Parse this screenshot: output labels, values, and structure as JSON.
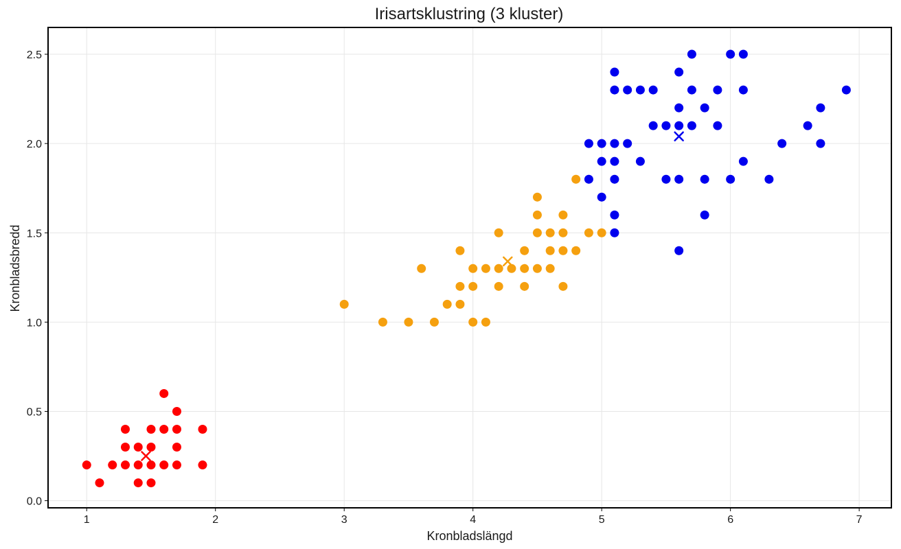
{
  "chart_data": {
    "type": "scatter",
    "title": "Irisartsklustring (3 kluster)",
    "xlabel": "Kronbladslängd",
    "ylabel": "Kronbladsbredd",
    "xlim": [
      0.7,
      7.25
    ],
    "ylim": [
      -0.04,
      2.65
    ],
    "xticks": [
      1,
      2,
      3,
      4,
      5,
      6,
      7
    ],
    "xtick_labels": [
      "1",
      "2",
      "3",
      "4",
      "5",
      "6",
      "7"
    ],
    "yticks": [
      0.0,
      0.5,
      1.0,
      1.5,
      2.0,
      2.5
    ],
    "ytick_labels": [
      "0.0",
      "0.5",
      "1.0",
      "1.5",
      "2.0",
      "2.5"
    ],
    "grid": true,
    "legend": "none",
    "series": [
      {
        "color": "#ff0000",
        "points": [
          [
            1.0,
            0.2
          ],
          [
            1.1,
            0.1
          ],
          [
            1.2,
            0.2
          ],
          [
            1.3,
            0.2
          ],
          [
            1.3,
            0.3
          ],
          [
            1.3,
            0.4
          ],
          [
            1.4,
            0.1
          ],
          [
            1.4,
            0.2
          ],
          [
            1.4,
            0.3
          ],
          [
            1.5,
            0.1
          ],
          [
            1.5,
            0.2
          ],
          [
            1.5,
            0.3
          ],
          [
            1.5,
            0.4
          ],
          [
            1.6,
            0.2
          ],
          [
            1.6,
            0.4
          ],
          [
            1.6,
            0.6
          ],
          [
            1.7,
            0.2
          ],
          [
            1.7,
            0.3
          ],
          [
            1.7,
            0.4
          ],
          [
            1.7,
            0.5
          ],
          [
            1.9,
            0.2
          ],
          [
            1.9,
            0.4
          ]
        ],
        "centroid": [
          1.46,
          0.25
        ]
      },
      {
        "color": "#f5a00f",
        "points": [
          [
            3.0,
            1.1
          ],
          [
            3.3,
            1.0
          ],
          [
            3.5,
            1.0
          ],
          [
            3.6,
            1.3
          ],
          [
            3.7,
            1.0
          ],
          [
            3.8,
            1.1
          ],
          [
            3.9,
            1.1
          ],
          [
            3.9,
            1.2
          ],
          [
            3.9,
            1.4
          ],
          [
            4.0,
            1.0
          ],
          [
            4.0,
            1.2
          ],
          [
            4.0,
            1.3
          ],
          [
            4.1,
            1.0
          ],
          [
            4.1,
            1.3
          ],
          [
            4.2,
            1.2
          ],
          [
            4.2,
            1.3
          ],
          [
            4.2,
            1.5
          ],
          [
            4.3,
            1.3
          ],
          [
            4.4,
            1.2
          ],
          [
            4.4,
            1.3
          ],
          [
            4.4,
            1.4
          ],
          [
            4.5,
            1.3
          ],
          [
            4.5,
            1.5
          ],
          [
            4.5,
            1.6
          ],
          [
            4.5,
            1.7
          ],
          [
            4.6,
            1.3
          ],
          [
            4.6,
            1.4
          ],
          [
            4.6,
            1.5
          ],
          [
            4.7,
            1.2
          ],
          [
            4.7,
            1.4
          ],
          [
            4.7,
            1.5
          ],
          [
            4.7,
            1.6
          ],
          [
            4.8,
            1.4
          ],
          [
            4.8,
            1.8
          ],
          [
            4.9,
            1.5
          ],
          [
            5.0,
            1.5
          ]
        ],
        "centroid": [
          4.27,
          1.34
        ]
      },
      {
        "color": "#0000ee",
        "points": [
          [
            4.9,
            1.8
          ],
          [
            4.9,
            2.0
          ],
          [
            5.0,
            1.7
          ],
          [
            5.0,
            1.9
          ],
          [
            5.0,
            2.0
          ],
          [
            5.1,
            1.5
          ],
          [
            5.1,
            1.6
          ],
          [
            5.1,
            1.8
          ],
          [
            5.1,
            1.9
          ],
          [
            5.1,
            2.0
          ],
          [
            5.1,
            2.3
          ],
          [
            5.1,
            2.4
          ],
          [
            5.2,
            2.0
          ],
          [
            5.2,
            2.3
          ],
          [
            5.3,
            1.9
          ],
          [
            5.3,
            2.3
          ],
          [
            5.4,
            2.1
          ],
          [
            5.4,
            2.3
          ],
          [
            5.5,
            1.8
          ],
          [
            5.5,
            2.1
          ],
          [
            5.6,
            1.4
          ],
          [
            5.6,
            1.8
          ],
          [
            5.6,
            2.1
          ],
          [
            5.6,
            2.2
          ],
          [
            5.6,
            2.4
          ],
          [
            5.7,
            2.1
          ],
          [
            5.7,
            2.3
          ],
          [
            5.7,
            2.5
          ],
          [
            5.8,
            1.6
          ],
          [
            5.8,
            1.8
          ],
          [
            5.8,
            2.2
          ],
          [
            5.9,
            2.1
          ],
          [
            5.9,
            2.3
          ],
          [
            6.0,
            1.8
          ],
          [
            6.0,
            2.5
          ],
          [
            6.1,
            1.9
          ],
          [
            6.1,
            2.3
          ],
          [
            6.1,
            2.5
          ],
          [
            6.3,
            1.8
          ],
          [
            6.4,
            2.0
          ],
          [
            6.6,
            2.1
          ],
          [
            6.7,
            2.0
          ],
          [
            6.7,
            2.2
          ],
          [
            6.9,
            2.3
          ]
        ],
        "centroid": [
          5.6,
          2.04
        ]
      }
    ]
  }
}
